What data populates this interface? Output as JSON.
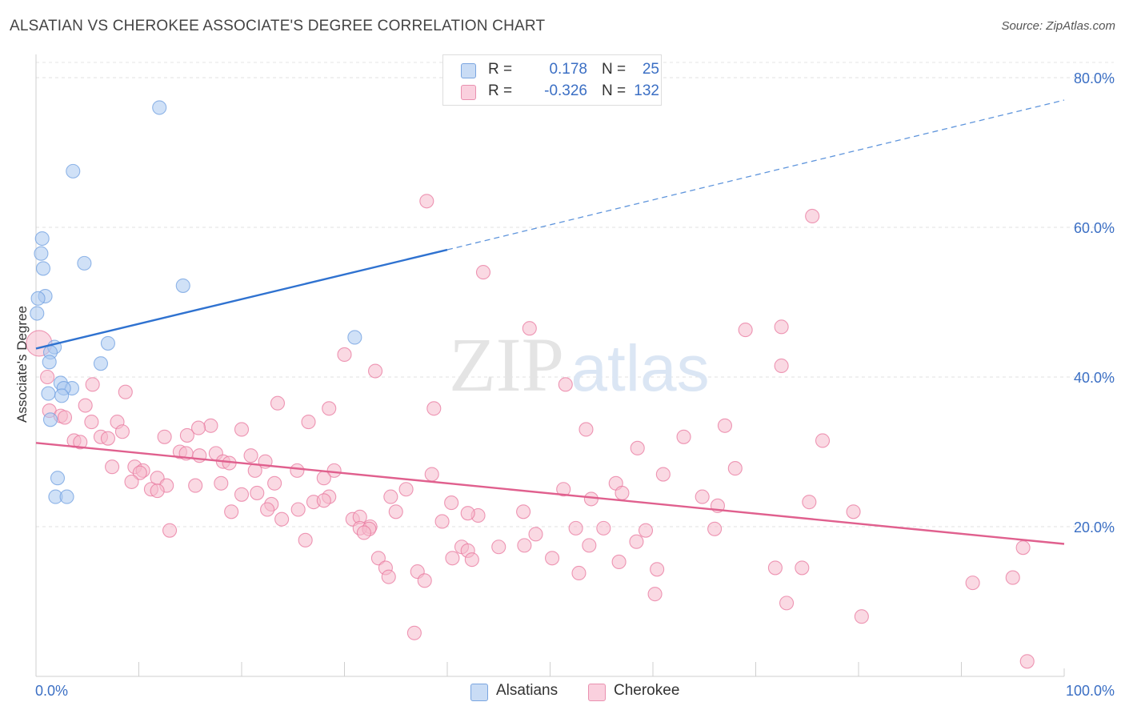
{
  "title": "ALSATIAN VS CHEROKEE ASSOCIATE'S DEGREE CORRELATION CHART",
  "source": "Source: ZipAtlas.com",
  "watermark": {
    "zip": "ZIP",
    "atlas": "atlas"
  },
  "legend": {
    "rows": [
      {
        "r_label": "R =",
        "r_value": "0.178",
        "n_label": "N =",
        "n_value": "25",
        "color": "#a9c8f0"
      },
      {
        "r_label": "R =",
        "r_value": "-0.326",
        "n_label": "N =",
        "n_value": "132",
        "color": "#f5b9cc"
      }
    ]
  },
  "bottom_legend": [
    {
      "label": "Alsatians",
      "color": "#a9c8f0"
    },
    {
      "label": "Cherokee",
      "color": "#f5b9cc"
    }
  ],
  "chart_data": {
    "type": "scatter",
    "title": "ALSATIAN VS CHEROKEE ASSOCIATE'S DEGREE CORRELATION CHART",
    "xlabel": "",
    "ylabel": "Associate's Degree",
    "xlim": [
      0,
      100
    ],
    "ylim": [
      0,
      80
    ],
    "x_tick_labels": [
      "0.0%",
      "100.0%"
    ],
    "y_ticks": [
      20,
      40,
      60,
      80
    ],
    "y_tick_labels": [
      "20.0%",
      "40.0%",
      "60.0%",
      "80.0%"
    ],
    "grid": true,
    "series": [
      {
        "name": "Alsatians",
        "color": "#6f9fe0",
        "fill": "#a9c8f0",
        "trend": {
          "x": [
            0,
            40
          ],
          "y": [
            43.8,
            57.0
          ],
          "dashed_extension_to": [
            100,
            77.0
          ]
        },
        "points": [
          [
            12,
            76
          ],
          [
            3.6,
            67.5
          ],
          [
            0.6,
            58.5
          ],
          [
            0.5,
            56.5
          ],
          [
            0.7,
            54.5
          ],
          [
            4.7,
            55.2
          ],
          [
            14.3,
            52.2
          ],
          [
            0.9,
            50.8
          ],
          [
            0.2,
            50.5
          ],
          [
            0.1,
            48.5
          ],
          [
            31,
            45.3
          ],
          [
            7,
            44.5
          ],
          [
            1.8,
            44
          ],
          [
            1.4,
            43.3
          ],
          [
            6.3,
            41.8
          ],
          [
            1.3,
            42
          ],
          [
            2.4,
            39.2
          ],
          [
            3.5,
            38.5
          ],
          [
            2.7,
            38.5
          ],
          [
            1.2,
            37.8
          ],
          [
            2.5,
            37.5
          ],
          [
            1.4,
            34.3
          ],
          [
            2.1,
            26.5
          ],
          [
            1.9,
            24
          ],
          [
            3,
            24
          ]
        ]
      },
      {
        "name": "Cherokee",
        "color": "#e8779e",
        "fill": "#f5b9cc",
        "trend": {
          "x": [
            0,
            100
          ],
          "y": [
            31.2,
            17.7
          ]
        },
        "points": [
          [
            0.3,
            44.5
          ],
          [
            38,
            63.5
          ],
          [
            75.5,
            61.5
          ],
          [
            43.5,
            54
          ],
          [
            48,
            46.5
          ],
          [
            69,
            46.3
          ],
          [
            72.5,
            46.7
          ],
          [
            30,
            43
          ],
          [
            33,
            40.8
          ],
          [
            72.5,
            41.5
          ],
          [
            1.1,
            40
          ],
          [
            51.5,
            39
          ],
          [
            5.5,
            39
          ],
          [
            8.7,
            38
          ],
          [
            4.8,
            36.2
          ],
          [
            23.5,
            36.5
          ],
          [
            28.5,
            35.8
          ],
          [
            38.7,
            35.8
          ],
          [
            1.3,
            35.5
          ],
          [
            2.4,
            34.8
          ],
          [
            2.8,
            34.6
          ],
          [
            5.4,
            34
          ],
          [
            7.9,
            34
          ],
          [
            26.5,
            34
          ],
          [
            17,
            33.5
          ],
          [
            15.8,
            33.2
          ],
          [
            20,
            33
          ],
          [
            53.5,
            33
          ],
          [
            67,
            33.5
          ],
          [
            8.4,
            32.7
          ],
          [
            12.5,
            32
          ],
          [
            14.7,
            32.2
          ],
          [
            6.3,
            32
          ],
          [
            7,
            31.8
          ],
          [
            3.7,
            31.5
          ],
          [
            4.3,
            31.3
          ],
          [
            63,
            32
          ],
          [
            76.5,
            31.5
          ],
          [
            58.5,
            30.5
          ],
          [
            14,
            30
          ],
          [
            14.6,
            29.8
          ],
          [
            15.9,
            29.5
          ],
          [
            17.5,
            29.8
          ],
          [
            20.9,
            29.5
          ],
          [
            18.2,
            28.7
          ],
          [
            18.8,
            28.5
          ],
          [
            22.3,
            28.7
          ],
          [
            7.4,
            28
          ],
          [
            9.6,
            28
          ],
          [
            10.4,
            27.5
          ],
          [
            10.1,
            27.2
          ],
          [
            21.3,
            27.5
          ],
          [
            25.4,
            27.5
          ],
          [
            29,
            27.5
          ],
          [
            38.5,
            27
          ],
          [
            68,
            27.8
          ],
          [
            61,
            27
          ],
          [
            9.3,
            26
          ],
          [
            11.8,
            26.5
          ],
          [
            12.7,
            25.5
          ],
          [
            15.5,
            25.5
          ],
          [
            18,
            25.8
          ],
          [
            23.2,
            25.8
          ],
          [
            28,
            26.5
          ],
          [
            56.4,
            25.8
          ],
          [
            36,
            25
          ],
          [
            11.2,
            25
          ],
          [
            11.8,
            24.8
          ],
          [
            20,
            24.3
          ],
          [
            21.5,
            24.5
          ],
          [
            28.5,
            24
          ],
          [
            34.5,
            24
          ],
          [
            57,
            24.5
          ],
          [
            51.3,
            25
          ],
          [
            54,
            23.7
          ],
          [
            64.8,
            24
          ],
          [
            75.2,
            23.3
          ],
          [
            27,
            23.3
          ],
          [
            28,
            23.5
          ],
          [
            22.9,
            23
          ],
          [
            22.5,
            22.3
          ],
          [
            25.5,
            22.3
          ],
          [
            40.4,
            23.2
          ],
          [
            66.3,
            22.8
          ],
          [
            19,
            22
          ],
          [
            35,
            22
          ],
          [
            43,
            21.5
          ],
          [
            47.4,
            22
          ],
          [
            79.5,
            22
          ],
          [
            42,
            21.8
          ],
          [
            30.8,
            21
          ],
          [
            31.5,
            21.3
          ],
          [
            23.9,
            21
          ],
          [
            39.5,
            20.7
          ],
          [
            32.5,
            20
          ],
          [
            31.5,
            19.8
          ],
          [
            32.4,
            19.7
          ],
          [
            52.5,
            19.8
          ],
          [
            55.2,
            19.8
          ],
          [
            59.3,
            19.5
          ],
          [
            66,
            19.7
          ],
          [
            13,
            19.5
          ],
          [
            48.6,
            19
          ],
          [
            31.9,
            19.2
          ],
          [
            26.2,
            18.2
          ],
          [
            58.4,
            18
          ],
          [
            53.8,
            17.5
          ],
          [
            45,
            17.3
          ],
          [
            47.5,
            17.5
          ],
          [
            41.4,
            17.3
          ],
          [
            42,
            16.8
          ],
          [
            96,
            17.2
          ],
          [
            33.3,
            15.8
          ],
          [
            40.5,
            15.8
          ],
          [
            42.4,
            15.6
          ],
          [
            50.2,
            15.8
          ],
          [
            56.7,
            15.3
          ],
          [
            34,
            14.5
          ],
          [
            37.1,
            14
          ],
          [
            60.4,
            14.3
          ],
          [
            71.9,
            14.5
          ],
          [
            74.5,
            14.5
          ],
          [
            52.8,
            13.8
          ],
          [
            95,
            13.2
          ],
          [
            34.3,
            13.3
          ],
          [
            37.8,
            12.8
          ],
          [
            91.1,
            12.5
          ],
          [
            60.2,
            11
          ],
          [
            73,
            9.8
          ],
          [
            80.3,
            8
          ],
          [
            36.8,
            5.8
          ],
          [
            96.4,
            2
          ]
        ]
      }
    ]
  }
}
